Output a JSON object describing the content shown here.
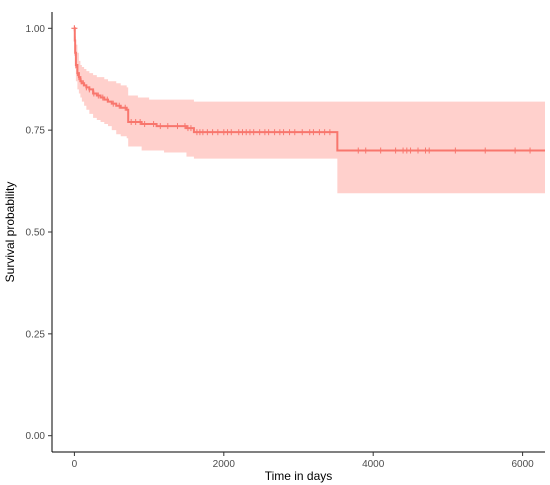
{
  "chart_data": {
    "type": "line",
    "title": "",
    "xlabel": "Time in days",
    "ylabel": "Survival probability",
    "xlim": [
      -300,
      6300
    ],
    "ylim": [
      -0.04,
      1.04
    ],
    "x_ticks": [
      0,
      2000,
      4000,
      6000
    ],
    "x_tick_labels": [
      "0",
      "2000",
      "4000",
      "6000"
    ],
    "y_ticks": [
      0,
      0.25,
      0.5,
      0.75,
      1.0
    ],
    "y_tick_labels": [
      "0.00",
      "0.25",
      "0.50",
      "0.75",
      "1.00"
    ],
    "grid": false,
    "legend": "none",
    "color": "#f8766d",
    "band_color": "#ffd0cc",
    "series": [
      {
        "x": [
          0,
          5,
          10,
          20,
          40,
          60,
          80,
          100,
          130,
          160,
          200,
          250,
          300,
          350,
          400,
          450,
          500,
          560,
          620,
          700,
          720,
          760,
          800,
          850,
          900,
          1000,
          1100,
          1150,
          1200,
          1300,
          1400,
          1500,
          1600,
          1650,
          1700,
          2000,
          2500,
          3000,
          3480,
          3520,
          4000,
          5000,
          6000,
          6300
        ],
        "y": [
          1.0,
          0.97,
          0.94,
          0.91,
          0.89,
          0.88,
          0.87,
          0.865,
          0.86,
          0.855,
          0.85,
          0.84,
          0.835,
          0.83,
          0.825,
          0.82,
          0.815,
          0.81,
          0.805,
          0.8,
          0.77,
          0.77,
          0.77,
          0.77,
          0.765,
          0.765,
          0.76,
          0.76,
          0.76,
          0.76,
          0.76,
          0.755,
          0.745,
          0.745,
          0.745,
          0.745,
          0.745,
          0.745,
          0.745,
          0.7,
          0.7,
          0.7,
          0.7,
          0.7
        ],
        "lower": [
          1.0,
          0.94,
          0.9,
          0.87,
          0.85,
          0.84,
          0.83,
          0.82,
          0.81,
          0.8,
          0.79,
          0.78,
          0.775,
          0.77,
          0.765,
          0.76,
          0.75,
          0.74,
          0.735,
          0.73,
          0.71,
          0.71,
          0.71,
          0.71,
          0.7,
          0.7,
          0.7,
          0.7,
          0.695,
          0.695,
          0.695,
          0.685,
          0.68,
          0.68,
          0.68,
          0.68,
          0.68,
          0.68,
          0.68,
          0.595,
          0.595,
          0.595,
          0.595,
          0.595
        ],
        "upper": [
          1.0,
          0.99,
          0.98,
          0.96,
          0.94,
          0.92,
          0.91,
          0.905,
          0.9,
          0.895,
          0.89,
          0.885,
          0.88,
          0.88,
          0.875,
          0.87,
          0.87,
          0.865,
          0.86,
          0.855,
          0.835,
          0.835,
          0.835,
          0.83,
          0.83,
          0.825,
          0.825,
          0.825,
          0.825,
          0.825,
          0.825,
          0.825,
          0.82,
          0.82,
          0.82,
          0.82,
          0.82,
          0.82,
          0.82,
          0.82,
          0.82,
          0.82,
          0.82,
          0.82
        ],
        "censor_x": [
          10,
          20,
          40,
          60,
          90,
          120,
          160,
          200,
          260,
          320,
          380,
          440,
          520,
          600,
          680,
          760,
          820,
          880,
          940,
          1060,
          1150,
          1250,
          1380,
          1480,
          1520,
          1560,
          1640,
          1680,
          1720,
          1780,
          1850,
          1920,
          2000,
          2050,
          2100,
          2200,
          2250,
          2300,
          2350,
          2400,
          2480,
          2550,
          2600,
          2680,
          2750,
          2800,
          2880,
          2950,
          3050,
          3150,
          3200,
          3280,
          3350,
          3420,
          3800,
          3900,
          4100,
          4300,
          4400,
          4450,
          4500,
          4600,
          4700,
          4750,
          5100,
          5500,
          5900,
          6100
        ]
      }
    ]
  }
}
